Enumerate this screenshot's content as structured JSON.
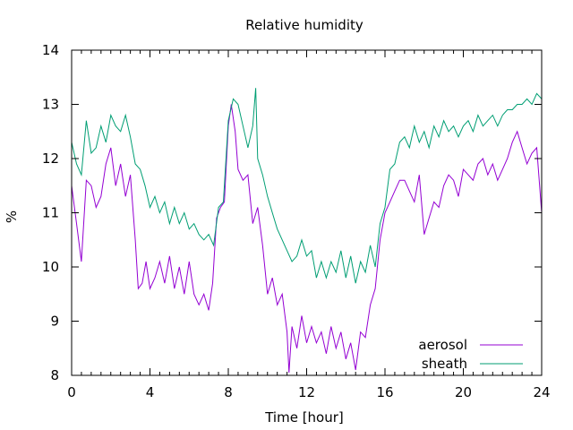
{
  "chart_data": {
    "type": "line",
    "title": "Relative humidity",
    "xlabel": "Time [hour]",
    "ylabel": "%",
    "xlim": [
      0,
      24
    ],
    "ylim": [
      8,
      14
    ],
    "xticks": [
      0,
      4,
      8,
      12,
      16,
      20,
      24
    ],
    "yticks": [
      8,
      9,
      10,
      11,
      12,
      13,
      14
    ],
    "xtick_labels": [
      "0",
      "4",
      "8",
      "12",
      "16",
      "20",
      "24"
    ],
    "ytick_labels": [
      "8",
      "9",
      "10",
      "11",
      "12",
      "13",
      "14"
    ],
    "grid": false,
    "legend_position": "bottom-right",
    "series": [
      {
        "name": "aerosol",
        "color": "#9400d3",
        "points": [
          [
            0.0,
            11.5
          ],
          [
            0.25,
            10.8
          ],
          [
            0.5,
            10.1
          ],
          [
            0.75,
            11.6
          ],
          [
            1.0,
            11.5
          ],
          [
            1.25,
            11.1
          ],
          [
            1.5,
            11.3
          ],
          [
            1.75,
            11.9
          ],
          [
            2.0,
            12.2
          ],
          [
            2.25,
            11.5
          ],
          [
            2.5,
            11.9
          ],
          [
            2.75,
            11.3
          ],
          [
            3.0,
            11.7
          ],
          [
            3.25,
            10.5
          ],
          [
            3.4,
            9.6
          ],
          [
            3.6,
            9.7
          ],
          [
            3.8,
            10.1
          ],
          [
            4.0,
            9.6
          ],
          [
            4.25,
            9.8
          ],
          [
            4.5,
            10.1
          ],
          [
            4.75,
            9.7
          ],
          [
            5.0,
            10.2
          ],
          [
            5.25,
            9.6
          ],
          [
            5.5,
            10.0
          ],
          [
            5.75,
            9.5
          ],
          [
            6.0,
            10.1
          ],
          [
            6.25,
            9.5
          ],
          [
            6.5,
            9.3
          ],
          [
            6.75,
            9.5
          ],
          [
            7.0,
            9.2
          ],
          [
            7.2,
            9.7
          ],
          [
            7.4,
            10.9
          ],
          [
            7.6,
            11.1
          ],
          [
            7.8,
            11.2
          ],
          [
            8.0,
            12.6
          ],
          [
            8.15,
            13.0
          ],
          [
            8.35,
            12.5
          ],
          [
            8.5,
            11.8
          ],
          [
            8.75,
            11.6
          ],
          [
            9.0,
            11.7
          ],
          [
            9.25,
            10.8
          ],
          [
            9.5,
            11.1
          ],
          [
            9.75,
            10.4
          ],
          [
            10.0,
            9.5
          ],
          [
            10.25,
            9.8
          ],
          [
            10.5,
            9.3
          ],
          [
            10.75,
            9.5
          ],
          [
            11.0,
            8.8
          ],
          [
            11.1,
            8.05
          ],
          [
            11.25,
            8.9
          ],
          [
            11.5,
            8.5
          ],
          [
            11.75,
            9.1
          ],
          [
            12.0,
            8.6
          ],
          [
            12.25,
            8.9
          ],
          [
            12.5,
            8.6
          ],
          [
            12.75,
            8.8
          ],
          [
            13.0,
            8.4
          ],
          [
            13.25,
            8.9
          ],
          [
            13.5,
            8.5
          ],
          [
            13.75,
            8.8
          ],
          [
            14.0,
            8.3
          ],
          [
            14.25,
            8.6
          ],
          [
            14.5,
            8.1
          ],
          [
            14.75,
            8.8
          ],
          [
            15.0,
            8.7
          ],
          [
            15.25,
            9.3
          ],
          [
            15.5,
            9.6
          ],
          [
            15.75,
            10.5
          ],
          [
            16.0,
            11.0
          ],
          [
            16.25,
            11.2
          ],
          [
            16.5,
            11.4
          ],
          [
            16.75,
            11.6
          ],
          [
            17.0,
            11.6
          ],
          [
            17.25,
            11.4
          ],
          [
            17.5,
            11.2
          ],
          [
            17.75,
            11.7
          ],
          [
            18.0,
            10.6
          ],
          [
            18.25,
            10.9
          ],
          [
            18.5,
            11.2
          ],
          [
            18.75,
            11.1
          ],
          [
            19.0,
            11.5
          ],
          [
            19.25,
            11.7
          ],
          [
            19.5,
            11.6
          ],
          [
            19.75,
            11.3
          ],
          [
            20.0,
            11.8
          ],
          [
            20.25,
            11.7
          ],
          [
            20.5,
            11.6
          ],
          [
            20.75,
            11.9
          ],
          [
            21.0,
            12.0
          ],
          [
            21.25,
            11.7
          ],
          [
            21.5,
            11.9
          ],
          [
            21.75,
            11.6
          ],
          [
            22.0,
            11.8
          ],
          [
            22.25,
            12.0
          ],
          [
            22.5,
            12.3
          ],
          [
            22.75,
            12.5
          ],
          [
            23.0,
            12.2
          ],
          [
            23.25,
            11.9
          ],
          [
            23.5,
            12.1
          ],
          [
            23.75,
            12.2
          ],
          [
            24.0,
            11.0
          ]
        ]
      },
      {
        "name": "sheath",
        "color": "#009e73",
        "points": [
          [
            0.0,
            12.3
          ],
          [
            0.25,
            11.9
          ],
          [
            0.5,
            11.7
          ],
          [
            0.75,
            12.7
          ],
          [
            1.0,
            12.1
          ],
          [
            1.25,
            12.2
          ],
          [
            1.5,
            12.6
          ],
          [
            1.75,
            12.3
          ],
          [
            2.0,
            12.8
          ],
          [
            2.25,
            12.6
          ],
          [
            2.5,
            12.5
          ],
          [
            2.75,
            12.8
          ],
          [
            3.0,
            12.4
          ],
          [
            3.25,
            11.9
          ],
          [
            3.5,
            11.8
          ],
          [
            3.75,
            11.5
          ],
          [
            4.0,
            11.1
          ],
          [
            4.25,
            11.3
          ],
          [
            4.5,
            11.0
          ],
          [
            4.75,
            11.2
          ],
          [
            5.0,
            10.8
          ],
          [
            5.25,
            11.1
          ],
          [
            5.5,
            10.8
          ],
          [
            5.75,
            11.0
          ],
          [
            6.0,
            10.7
          ],
          [
            6.25,
            10.8
          ],
          [
            6.5,
            10.6
          ],
          [
            6.75,
            10.5
          ],
          [
            7.0,
            10.6
          ],
          [
            7.25,
            10.4
          ],
          [
            7.5,
            11.1
          ],
          [
            7.75,
            11.2
          ],
          [
            8.0,
            12.7
          ],
          [
            8.25,
            13.1
          ],
          [
            8.5,
            13.0
          ],
          [
            8.75,
            12.6
          ],
          [
            9.0,
            12.2
          ],
          [
            9.25,
            12.6
          ],
          [
            9.4,
            13.3
          ],
          [
            9.5,
            12.0
          ],
          [
            9.75,
            11.7
          ],
          [
            10.0,
            11.3
          ],
          [
            10.25,
            11.0
          ],
          [
            10.5,
            10.7
          ],
          [
            10.75,
            10.5
          ],
          [
            11.0,
            10.3
          ],
          [
            11.25,
            10.1
          ],
          [
            11.5,
            10.2
          ],
          [
            11.75,
            10.5
          ],
          [
            12.0,
            10.2
          ],
          [
            12.25,
            10.3
          ],
          [
            12.5,
            9.8
          ],
          [
            12.75,
            10.1
          ],
          [
            13.0,
            9.8
          ],
          [
            13.25,
            10.1
          ],
          [
            13.5,
            9.9
          ],
          [
            13.75,
            10.3
          ],
          [
            14.0,
            9.8
          ],
          [
            14.25,
            10.2
          ],
          [
            14.5,
            9.7
          ],
          [
            14.75,
            10.1
          ],
          [
            15.0,
            9.9
          ],
          [
            15.25,
            10.4
          ],
          [
            15.5,
            10.0
          ],
          [
            15.75,
            10.8
          ],
          [
            16.0,
            11.1
          ],
          [
            16.25,
            11.8
          ],
          [
            16.5,
            11.9
          ],
          [
            16.75,
            12.3
          ],
          [
            17.0,
            12.4
          ],
          [
            17.25,
            12.2
          ],
          [
            17.5,
            12.6
          ],
          [
            17.75,
            12.3
          ],
          [
            18.0,
            12.5
          ],
          [
            18.25,
            12.2
          ],
          [
            18.5,
            12.6
          ],
          [
            18.75,
            12.4
          ],
          [
            19.0,
            12.7
          ],
          [
            19.25,
            12.5
          ],
          [
            19.5,
            12.6
          ],
          [
            19.75,
            12.4
          ],
          [
            20.0,
            12.6
          ],
          [
            20.25,
            12.7
          ],
          [
            20.5,
            12.5
          ],
          [
            20.75,
            12.8
          ],
          [
            21.0,
            12.6
          ],
          [
            21.25,
            12.7
          ],
          [
            21.5,
            12.8
          ],
          [
            21.75,
            12.6
          ],
          [
            22.0,
            12.8
          ],
          [
            22.25,
            12.9
          ],
          [
            22.5,
            12.9
          ],
          [
            22.75,
            13.0
          ],
          [
            23.0,
            13.0
          ],
          [
            23.25,
            13.1
          ],
          [
            23.5,
            13.0
          ],
          [
            23.75,
            13.2
          ],
          [
            24.0,
            13.1
          ]
        ]
      }
    ]
  }
}
